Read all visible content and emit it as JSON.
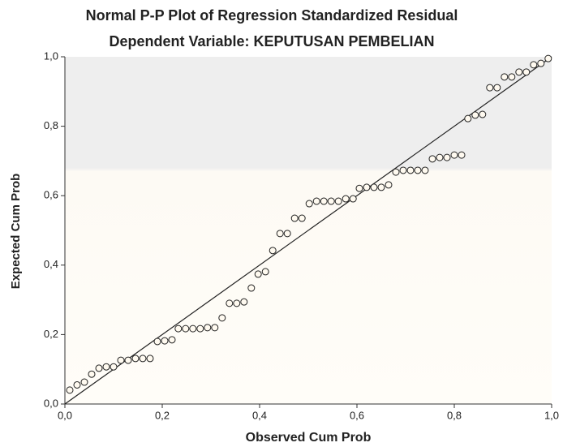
{
  "chart_data": {
    "type": "scatter",
    "title": "Normal P-P Plot of Regression Standardized Residual",
    "subtitle": "Dependent Variable: KEPUTUSAN PEMBELIAN",
    "xlabel": "Observed Cum Prob",
    "ylabel": "Expected Cum Prob",
    "xlim": [
      0,
      1
    ],
    "ylim": [
      0,
      1
    ],
    "xticks": [
      {
        "value": 0,
        "label": "0,0"
      },
      {
        "value": 0.2,
        "label": "0,2"
      },
      {
        "value": 0.4,
        "label": "0,4"
      },
      {
        "value": 0.6,
        "label": "0,6"
      },
      {
        "value": 0.8,
        "label": "0,8"
      },
      {
        "value": 1,
        "label": "1,0"
      }
    ],
    "yticks": [
      {
        "value": 0,
        "label": "0,0"
      },
      {
        "value": 0.2,
        "label": "0,2"
      },
      {
        "value": 0.4,
        "label": "0,4"
      },
      {
        "value": 0.6,
        "label": "0,6"
      },
      {
        "value": 0.8,
        "label": "0,8"
      },
      {
        "value": 1,
        "label": "1,0"
      }
    ],
    "reference_line": true,
    "series": [
      {
        "color": "#222222",
        "x": [
          0.01,
          0.025,
          0.04,
          0.055,
          0.07,
          0.085,
          0.1,
          0.115,
          0.13,
          0.145,
          0.16,
          0.175,
          0.19,
          0.205,
          0.22,
          0.233,
          0.248,
          0.263,
          0.278,
          0.293,
          0.308,
          0.323,
          0.338,
          0.353,
          0.368,
          0.383,
          0.397,
          0.412,
          0.427,
          0.442,
          0.457,
          0.472,
          0.487,
          0.502,
          0.517,
          0.532,
          0.547,
          0.562,
          0.577,
          0.592,
          0.605,
          0.62,
          0.635,
          0.65,
          0.665,
          0.68,
          0.695,
          0.71,
          0.725,
          0.74,
          0.755,
          0.77,
          0.785,
          0.8,
          0.815,
          0.828,
          0.843,
          0.858,
          0.873,
          0.888,
          0.903,
          0.918,
          0.933,
          0.948,
          0.963,
          0.978,
          0.993
        ],
        "values": [
          0.04,
          0.055,
          0.063,
          0.086,
          0.103,
          0.107,
          0.107,
          0.126,
          0.126,
          0.131,
          0.131,
          0.131,
          0.18,
          0.182,
          0.185,
          0.217,
          0.217,
          0.217,
          0.217,
          0.22,
          0.22,
          0.248,
          0.29,
          0.29,
          0.294,
          0.334,
          0.374,
          0.381,
          0.442,
          0.491,
          0.491,
          0.535,
          0.535,
          0.577,
          0.584,
          0.584,
          0.584,
          0.584,
          0.591,
          0.591,
          0.621,
          0.624,
          0.624,
          0.624,
          0.631,
          0.668,
          0.673,
          0.673,
          0.673,
          0.673,
          0.706,
          0.71,
          0.71,
          0.717,
          0.717,
          0.822,
          0.832,
          0.834,
          0.911,
          0.911,
          0.942,
          0.942,
          0.956,
          0.956,
          0.977,
          0.981,
          0.995
        ]
      }
    ]
  }
}
